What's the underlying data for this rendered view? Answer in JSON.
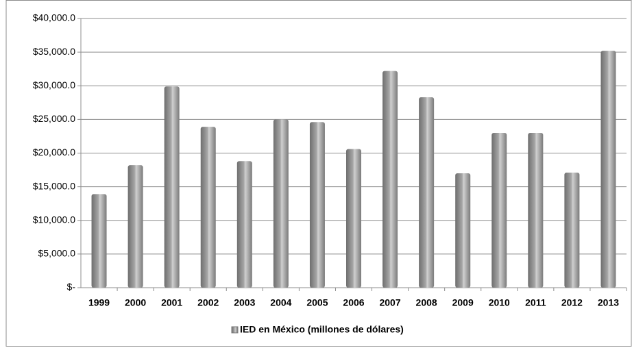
{
  "chart_data": {
    "type": "bar",
    "categories": [
      "1999",
      "2000",
      "2001",
      "2002",
      "2003",
      "2004",
      "2005",
      "2006",
      "2007",
      "2008",
      "2009",
      "2010",
      "2011",
      "2012",
      "2013"
    ],
    "series": [
      {
        "name": "IED en México (millones de dólares)",
        "color": "#a6a6a6",
        "values": [
          13900,
          18200,
          29900,
          23900,
          18800,
          25000,
          24600,
          20600,
          32200,
          28300,
          17000,
          23000,
          23000,
          17100,
          35200
        ]
      }
    ],
    "ylim": [
      0,
      40000
    ],
    "yticks": [
      {
        "value": 0,
        "label": "$-"
      },
      {
        "value": 5000,
        "label": "$5,000.0"
      },
      {
        "value": 10000,
        "label": "$10,000.0"
      },
      {
        "value": 15000,
        "label": "$15,000.0"
      },
      {
        "value": 20000,
        "label": "$20,000.0"
      },
      {
        "value": 25000,
        "label": "$25,000.0"
      },
      {
        "value": 30000,
        "label": "$30,000.0"
      },
      {
        "value": 35000,
        "label": "$35,000.0"
      },
      {
        "value": 40000,
        "label": "$40,000.0"
      }
    ],
    "grid": true,
    "legend": "bottom"
  }
}
